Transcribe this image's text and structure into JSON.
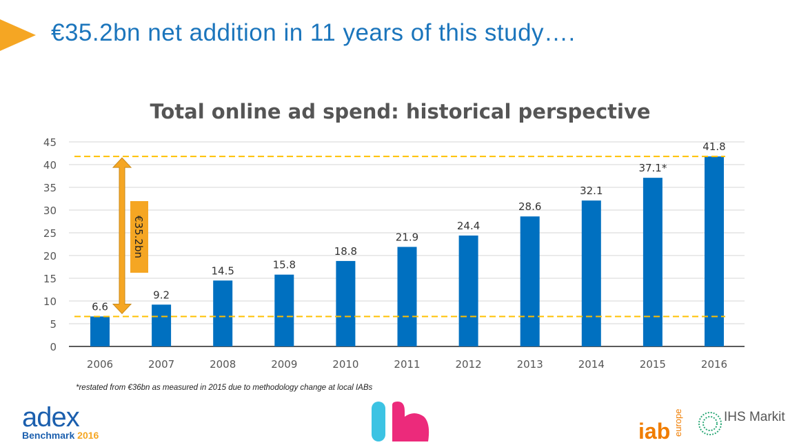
{
  "headline": "€35.2bn net addition in 11 years of this study….",
  "footnote": "*restated from €36bn as measured in 2015 due to methodology change at local IABs",
  "logos": {
    "adex_word": "adex",
    "adex_sub": "Benchmark",
    "adex_year": "2016",
    "iab": "iab",
    "iab_europe": "europe",
    "ihs": "IHS Markit"
  },
  "colors": {
    "bar": "#0070c0",
    "accent": "#f5a623",
    "dashed": "#ffc000",
    "headline": "#1b75bc"
  },
  "chart_data": {
    "type": "bar",
    "title": "Total online ad spend: historical perspective",
    "categories": [
      "2006",
      "2007",
      "2008",
      "2009",
      "2010",
      "2011",
      "2012",
      "2013",
      "2014",
      "2015",
      "2016"
    ],
    "values": [
      6.6,
      9.2,
      14.5,
      15.8,
      18.8,
      21.9,
      24.4,
      28.6,
      32.1,
      37.1,
      41.8
    ],
    "data_labels": [
      "6.6",
      "9.2",
      "14.5",
      "15.8",
      "18.8",
      "21.9",
      "24.4",
      "28.6",
      "32.1",
      "37.1*",
      "41.8"
    ],
    "ylim": [
      0,
      45
    ],
    "yticks": [
      0,
      5,
      10,
      15,
      20,
      25,
      30,
      35,
      40,
      45
    ],
    "grid": true,
    "reference_lines": [
      6.6,
      41.8
    ],
    "annotation": "€35.2bn",
    "xlabel": "",
    "ylabel": ""
  }
}
